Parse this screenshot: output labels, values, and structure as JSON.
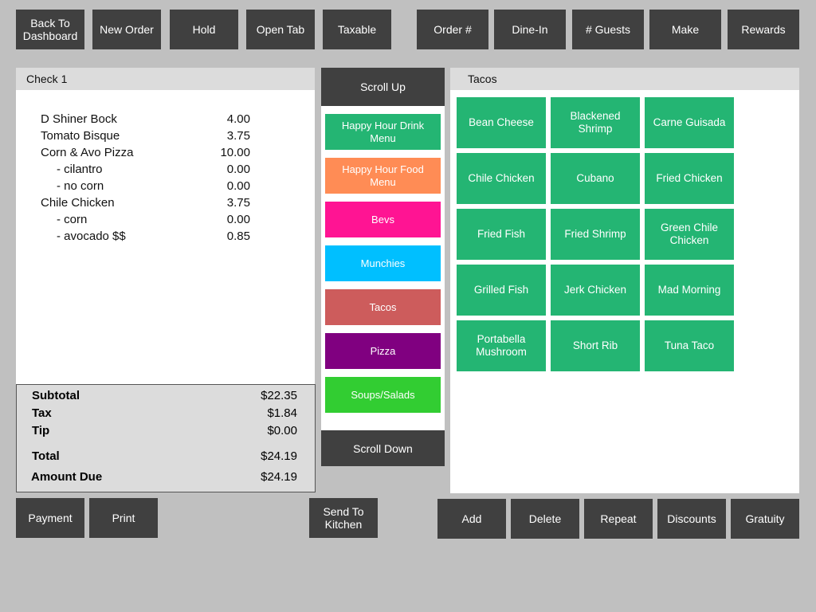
{
  "colors": {
    "background": "#c0c0c0",
    "button": "#404040",
    "tile": "#24b573",
    "panel_header": "#dcdcdc"
  },
  "toolbar": {
    "back_to_dashboard": "Back To\nDashboard",
    "new_order": "New Order",
    "hold": "Hold",
    "open_tab": "Open Tab",
    "taxable": "Taxable",
    "order_number": "Order #",
    "dine_in": "Dine-In",
    "guests": "# Guests",
    "make": "Make",
    "rewards": "Rewards"
  },
  "check": {
    "title": "Check 1",
    "items": [
      {
        "name": "D Shiner Bock",
        "price": "4.00"
      },
      {
        "name": "Tomato Bisque",
        "price": "3.75"
      },
      {
        "name": "Corn & Avo Pizza",
        "price": "10.00"
      },
      {
        "name": "- cilantro",
        "price": "0.00"
      },
      {
        "name": "- no corn",
        "price": "0.00"
      },
      {
        "name": "Chile Chicken",
        "price": "3.75"
      },
      {
        "name": "- corn",
        "price": "0.00"
      },
      {
        "name": "- avocado $$",
        "price": "0.85"
      }
    ],
    "totals": {
      "subtotal_label": "Subtotal",
      "subtotal": "$22.35",
      "tax_label": "Tax",
      "tax": "$1.84",
      "tip_label": "Tip",
      "tip": "$0.00",
      "total_label": "Total",
      "total": "$24.19",
      "amount_due_label": "Amount Due",
      "amount_due": "$24.19"
    }
  },
  "categories": {
    "scroll_up": "Scroll Up",
    "scroll_down": "Scroll Down",
    "items": [
      {
        "label": "Happy Hour Drink Menu",
        "color": "#24b573"
      },
      {
        "label": "Happy Hour Food Menu",
        "color": "#ff8c55"
      },
      {
        "label": "Bevs",
        "color": "#ff1493"
      },
      {
        "label": "Munchies",
        "color": "#00bfff"
      },
      {
        "label": "Tacos",
        "color": "#cd5c5c"
      },
      {
        "label": "Pizza",
        "color": "#800080"
      },
      {
        "label": "Soups/Salads",
        "color": "#32cd32"
      }
    ]
  },
  "menu": {
    "title": "Tacos",
    "items": [
      "Bean  Cheese",
      "Blackened Shrimp",
      "Carne Guisada",
      "Chile Chicken",
      "Cubano",
      "Fried Chicken",
      "Fried Fish",
      "Fried Shrimp",
      "Green Chile Chicken",
      "Grilled Fish",
      "Jerk Chicken",
      "Mad Morning",
      "Portabella Mushroom",
      "Short Rib",
      "Tuna Taco"
    ]
  },
  "bottom": {
    "payment": "Payment",
    "print": "Print",
    "send_to_kitchen": "Send To\nKitchen",
    "add": "Add",
    "delete": "Delete",
    "repeat": "Repeat",
    "discounts": "Discounts",
    "gratuity": "Gratuity"
  }
}
